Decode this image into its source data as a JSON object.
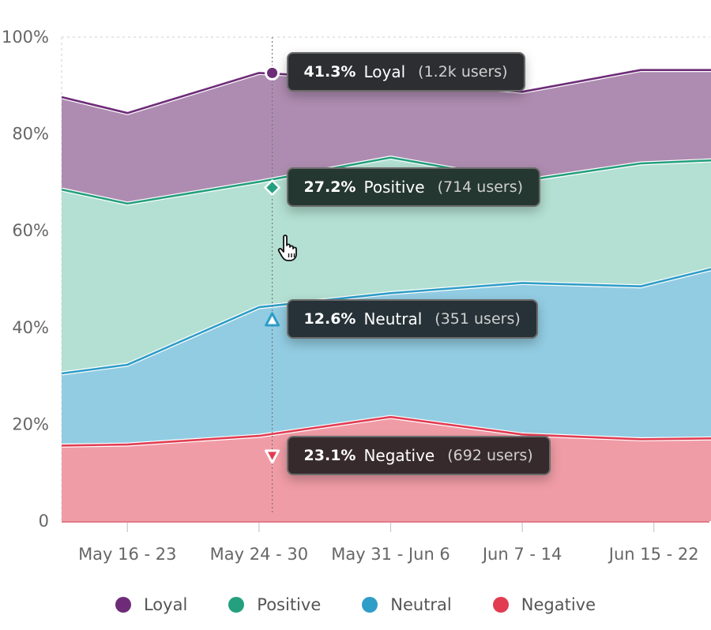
{
  "chart_data": {
    "type": "area",
    "stacked": true,
    "categories": [
      "May 16 - 23",
      "May 24 - 30",
      "May 31 - Jun 6",
      "Jun 7 - 14",
      "Jun 15 - 22"
    ],
    "x": [
      0,
      0.5,
      1.5,
      2.5,
      3.5,
      4.4,
      5
    ],
    "ylim": [
      0,
      100
    ],
    "yticks": [
      "0",
      "20%",
      "40%",
      "60%",
      "80%",
      "100%"
    ],
    "grid": true,
    "legend_position": "bottom",
    "series": [
      {
        "name": "Negative",
        "color": "#e23c52",
        "fill": "#f09ca6",
        "values": [
          15.6,
          15.8,
          17.6,
          21.5,
          17.9,
          16.9,
          17.1
        ]
      },
      {
        "name": "Neutral",
        "color": "#2e9dc7",
        "fill": "#92cce2",
        "values": [
          30.5,
          32.3,
          44.2,
          47.1,
          49.2,
          48.5,
          52.5
        ]
      },
      {
        "name": "Positive",
        "color": "#24a07e",
        "fill": "#b3e0d2",
        "values": [
          68.5,
          65.6,
          70.1,
          75.1,
          70.3,
          73.9,
          74.6
        ]
      },
      {
        "name": "Loyal",
        "color": "#6e2c78",
        "fill": "#ae8cb1",
        "values": [
          87.6,
          84.3,
          92.6,
          91.2,
          88.7,
          93.2,
          93.2
        ]
      }
    ],
    "hover": {
      "x": 1.6,
      "tooltips": [
        {
          "series": "Loyal",
          "value": 92.6,
          "percent": "41.3%",
          "label": "Loyal",
          "count": "(1.2k users)",
          "marker": "circle",
          "bg": "#2c2e31"
        },
        {
          "series": "Positive",
          "value": 68.9,
          "percent": "27.2%",
          "label": "Positive",
          "count": "(714 users)",
          "marker": "diamond",
          "bg": "#253731"
        },
        {
          "series": "Neutral",
          "value": 41.6,
          "percent": "12.6%",
          "label": "Neutral",
          "count": "(351 users)",
          "marker": "triangle-up",
          "bg": "#263238"
        },
        {
          "series": "Negative",
          "value": 13.4,
          "percent": "23.1%",
          "label": "Negative",
          "count": "(692 users)",
          "marker": "triangle-down",
          "bg": "#372a2d"
        }
      ]
    }
  },
  "legend": [
    {
      "label": "Loyal",
      "color": "#6e2c78"
    },
    {
      "label": "Positive",
      "color": "#24a07e"
    },
    {
      "label": "Neutral",
      "color": "#2e9dc7"
    },
    {
      "label": "Negative",
      "color": "#e23c52"
    }
  ],
  "icons": {
    "cursor": "hand-pointer-icon"
  }
}
